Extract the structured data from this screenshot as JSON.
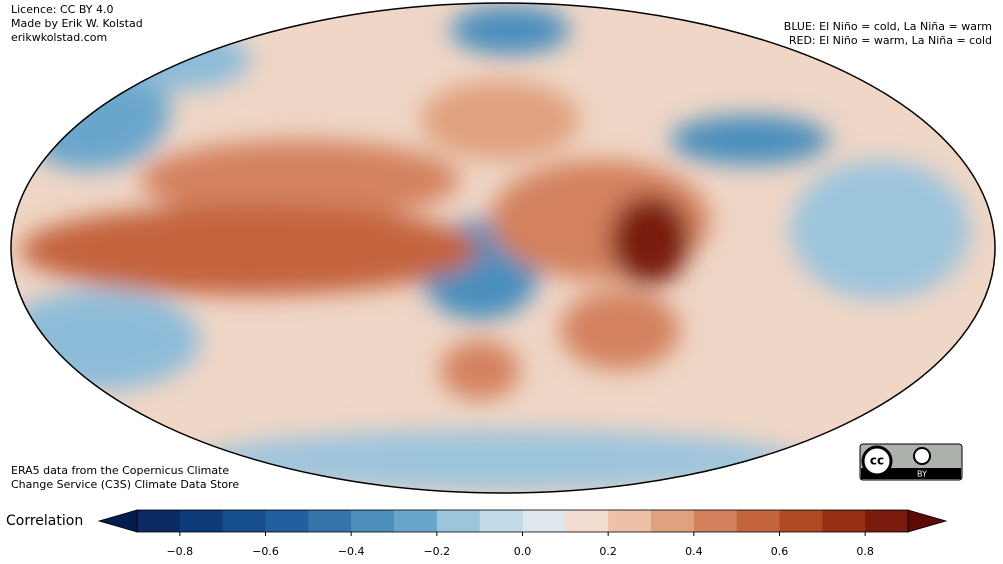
{
  "notes": {
    "top_left": [
      "Licence: CC BY 4.0",
      "Made by Erik W. Kolstad",
      "erikwkolstad.com"
    ],
    "top_right": [
      "BLUE: El Niño = cold, La Niña = warm",
      "RED: El Niño = warm, La Niña = cold"
    ],
    "bottom_left": [
      "ERA5 data from the Copernicus Climate",
      "Change Service (C3S) Climate Data Store"
    ],
    "badge": "BY"
  },
  "colorbar": {
    "label": "Correlation",
    "levels": [
      -0.9,
      -0.8,
      -0.7,
      -0.6,
      -0.5,
      -0.4,
      -0.3,
      -0.2,
      -0.1,
      0,
      0.1,
      0.2,
      0.3,
      0.4,
      0.5,
      0.6,
      0.7,
      0.8,
      0.9
    ],
    "colors": [
      "#0b2a63",
      "#0d3a78",
      "#174f8e",
      "#215f9f",
      "#3474ab",
      "#4c8fbd",
      "#6aa6cc",
      "#9cc4dd",
      "#c3dae8",
      "#dde7ec",
      "#f2ddd0",
      "#ecc1a6",
      "#e0a17f",
      "#d4825e",
      "#c4643d",
      "#b04a22",
      "#952f12",
      "#7a1a0d"
    ],
    "extend_colors": [
      "#031d4e",
      "#5c0a08"
    ],
    "ticks": [
      {
        "value": -0.8,
        "label": "−0.8"
      },
      {
        "value": -0.6,
        "label": "−0.6"
      },
      {
        "value": -0.4,
        "label": "−0.4"
      },
      {
        "value": -0.2,
        "label": "−0.2"
      },
      {
        "value": 0,
        "label": "0.0"
      },
      0.2,
      0.4,
      0.6,
      0.8
    ]
  }
}
